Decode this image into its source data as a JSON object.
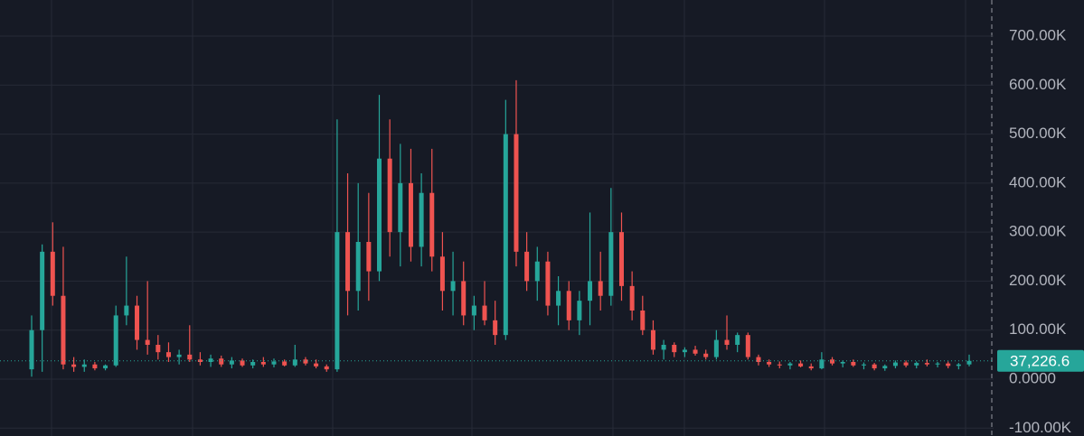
{
  "chart_data": {
    "type": "candlestick",
    "categories": [
      null,
      null,
      null,
      null,
      null,
      null,
      null,
      null,
      null,
      null,
      null,
      null,
      null,
      null,
      null,
      null,
      null,
      null,
      null,
      null,
      null,
      null,
      null,
      null,
      null,
      null,
      null,
      null,
      null,
      null,
      null,
      null,
      null,
      null,
      null,
      null,
      null,
      null,
      null,
      null,
      null,
      null,
      null,
      null,
      null,
      null,
      null,
      null,
      null,
      null,
      null,
      null,
      null,
      null,
      null,
      null,
      null,
      null,
      null,
      null,
      null,
      null,
      null,
      null,
      null,
      null,
      null,
      null,
      null,
      null,
      null,
      null,
      null,
      null,
      null,
      null,
      null,
      null,
      null,
      null,
      null,
      null,
      null,
      null,
      null,
      null,
      null,
      null,
      null,
      null
    ],
    "open": [
      20000,
      100000,
      260000,
      170000,
      30000,
      25000,
      30000,
      22000,
      28000,
      130000,
      150000,
      80000,
      70000,
      55000,
      45000,
      50000,
      40000,
      35000,
      42000,
      30000,
      38000,
      28000,
      35000,
      30000,
      36000,
      28000,
      40000,
      32000,
      26000,
      20000,
      300000,
      180000,
      280000,
      220000,
      450000,
      300000,
      400000,
      270000,
      380000,
      250000,
      180000,
      200000,
      130000,
      150000,
      120000,
      90000,
      500000,
      260000,
      200000,
      240000,
      150000,
      180000,
      120000,
      160000,
      200000,
      170000,
      300000,
      190000,
      140000,
      100000,
      60000,
      70000,
      55000,
      60000,
      52000,
      45000,
      80000,
      70000,
      90000,
      45000,
      35000,
      30000,
      28000,
      32000,
      26000,
      22000,
      40000,
      32000,
      35000,
      28000,
      30000,
      22000,
      27000,
      34000,
      28000,
      33000,
      30000,
      32000,
      27000,
      30000
    ],
    "high": [
      130000,
      275000,
      320000,
      270000,
      45000,
      40000,
      35000,
      30000,
      150000,
      250000,
      170000,
      200000,
      90000,
      75000,
      60000,
      110000,
      55000,
      50000,
      48000,
      45000,
      42000,
      40000,
      45000,
      42000,
      40000,
      70000,
      45000,
      40000,
      30000,
      530000,
      420000,
      400000,
      380000,
      580000,
      530000,
      480000,
      470000,
      420000,
      470000,
      300000,
      260000,
      240000,
      170000,
      200000,
      160000,
      570000,
      610000,
      300000,
      270000,
      260000,
      210000,
      200000,
      180000,
      340000,
      260000,
      390000,
      340000,
      220000,
      170000,
      120000,
      80000,
      75000,
      65000,
      68000,
      60000,
      100000,
      130000,
      95000,
      95000,
      50000,
      40000,
      36000,
      35000,
      38000,
      32000,
      55000,
      45000,
      38000,
      40000,
      34000,
      33000,
      30000,
      38000,
      38000,
      36000,
      40000,
      35000,
      36000,
      33000,
      50000
    ],
    "low": [
      5000,
      15000,
      150000,
      20000,
      15000,
      15000,
      18000,
      18000,
      25000,
      110000,
      60000,
      50000,
      40000,
      35000,
      30000,
      35000,
      28000,
      25000,
      25000,
      22000,
      25000,
      22000,
      25000,
      24000,
      26000,
      25000,
      28000,
      22000,
      15000,
      15000,
      130000,
      140000,
      160000,
      200000,
      250000,
      230000,
      240000,
      230000,
      220000,
      140000,
      130000,
      110000,
      100000,
      110000,
      70000,
      80000,
      230000,
      180000,
      160000,
      130000,
      110000,
      100000,
      90000,
      110000,
      140000,
      150000,
      160000,
      120000,
      90000,
      50000,
      40000,
      45000,
      45000,
      48000,
      40000,
      40000,
      60000,
      55000,
      40000,
      28000,
      25000,
      22000,
      20000,
      24000,
      18000,
      20000,
      28000,
      24000,
      25000,
      20000,
      18000,
      17000,
      22000,
      24000,
      22000,
      26000,
      24000,
      22000,
      20000,
      26000
    ],
    "close": [
      100000,
      260000,
      170000,
      30000,
      25000,
      30000,
      22000,
      28000,
      130000,
      150000,
      80000,
      70000,
      55000,
      45000,
      50000,
      40000,
      35000,
      42000,
      30000,
      38000,
      28000,
      35000,
      30000,
      36000,
      28000,
      40000,
      32000,
      26000,
      20000,
      300000,
      180000,
      280000,
      220000,
      450000,
      300000,
      400000,
      270000,
      380000,
      250000,
      180000,
      200000,
      130000,
      150000,
      120000,
      90000,
      500000,
      260000,
      200000,
      240000,
      150000,
      180000,
      120000,
      160000,
      200000,
      170000,
      300000,
      190000,
      140000,
      100000,
      60000,
      70000,
      55000,
      60000,
      52000,
      45000,
      80000,
      70000,
      90000,
      45000,
      35000,
      30000,
      28000,
      32000,
      26000,
      22000,
      40000,
      32000,
      35000,
      28000,
      30000,
      22000,
      27000,
      34000,
      28000,
      33000,
      30000,
      32000,
      27000,
      30000,
      37226.6
    ],
    "up_color": "#26a69a",
    "down_color": "#ef5350",
    "ylim": [
      -116053,
      773684
    ],
    "yticks": [
      {
        "value": -100000,
        "label": "-100.00K"
      },
      {
        "value": 0,
        "label": "0.0000"
      },
      {
        "value": 100000,
        "label": "100.00K"
      },
      {
        "value": 200000,
        "label": "200.00K"
      },
      {
        "value": 300000,
        "label": "300.00K"
      },
      {
        "value": 400000,
        "label": "400.00K"
      },
      {
        "value": 500000,
        "label": "500.00K"
      },
      {
        "value": 600000,
        "label": "600.00K"
      },
      {
        "value": 700000,
        "label": "700.00K"
      }
    ],
    "grid": true,
    "last_price": {
      "value": 37226.6,
      "label": "37,226.6"
    }
  }
}
